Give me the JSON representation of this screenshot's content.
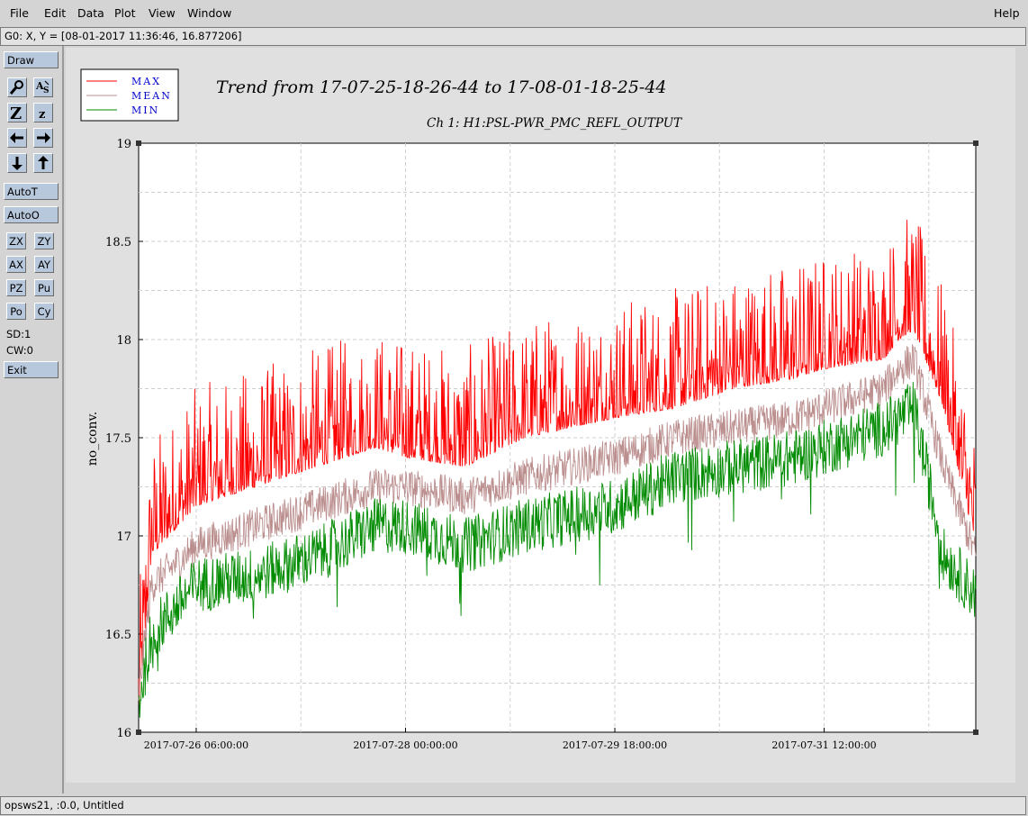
{
  "menu": {
    "file": "File",
    "edit": "Edit",
    "data": "Data",
    "plot": "Plot",
    "view": "View",
    "window": "Window",
    "help": "Help"
  },
  "coord_readout": "G0: X, Y = [08-01-2017 11:36:46, 16.877206]",
  "toolbar": {
    "draw": "Draw",
    "autot": "AutoT",
    "autoo": "AutoO",
    "zx": "ZX",
    "zy": "ZY",
    "ax": "AX",
    "ay": "AY",
    "pz": "PZ",
    "pu": "Pu",
    "po": "Po",
    "cy": "Cy",
    "sd": "SD:1",
    "cw": "CW:0",
    "exit": "Exit"
  },
  "icons": [
    "magnifier-icon",
    "autoscale-text-icon",
    "zoom-in-icon",
    "zoom-out-icon",
    "arrow-left-icon",
    "arrow-right-icon",
    "arrow-down-icon",
    "arrow-up-icon"
  ],
  "status_text": "opsws21, :0.0, Untitled",
  "colors": {
    "max": "#ff0000",
    "mean": "#bc8f8f",
    "min": "#008b00",
    "legend_text": "#0000cc",
    "button": "#b8c8dc"
  },
  "chart_data": {
    "type": "line",
    "title": "Trend from 17-07-25-18-26-44 to 17-08-01-18-25-44",
    "subtitle": "Ch 1: H1:PSL-PWR_PMC_REFL_OUTPUT",
    "xlabel": "",
    "ylabel": "no_conv.",
    "ylim": [
      16,
      19
    ],
    "yticks": [
      "16",
      "16.5",
      "17",
      "17.5",
      "18",
      "18.5",
      "19"
    ],
    "xlim": [
      "2017-07-25 18:26:44",
      "2017-08-01 18:25:44"
    ],
    "xticks": [
      "2017-07-26 06:00:00",
      "2017-07-28 00:00:00",
      "2017-07-29 18:00:00",
      "2017-07-31 12:00:00"
    ],
    "grid": true,
    "legend_position": "top-left",
    "x": [
      "2017-07-25 18:30",
      "2017-07-25 21:00",
      "2017-07-26 06:00",
      "2017-07-26 18:00",
      "2017-07-27 06:00",
      "2017-07-27 18:00",
      "2017-07-28 00:00",
      "2017-07-28 12:00",
      "2017-07-29 00:00",
      "2017-07-29 18:00",
      "2017-07-30 06:00",
      "2017-07-30 18:00",
      "2017-07-31 06:00",
      "2017-07-31 12:00",
      "2017-08-01 00:00",
      "2017-08-01 03:00",
      "2017-08-01 06:00",
      "2017-08-01 12:00",
      "2017-08-01 18:25"
    ],
    "series": [
      {
        "name": "MAX",
        "values": [
          16.2,
          17.0,
          17.25,
          17.35,
          17.45,
          17.55,
          17.5,
          17.45,
          17.6,
          17.7,
          17.75,
          17.85,
          17.9,
          17.95,
          18.0,
          18.1,
          18.15,
          17.75,
          17.05
        ]
      },
      {
        "name": "MEAN",
        "values": [
          16.2,
          16.75,
          16.95,
          17.05,
          17.15,
          17.25,
          17.25,
          17.2,
          17.3,
          17.4,
          17.5,
          17.55,
          17.6,
          17.65,
          17.75,
          17.85,
          17.9,
          17.35,
          16.9
        ]
      },
      {
        "name": "MIN",
        "values": [
          16.15,
          16.5,
          16.75,
          16.8,
          16.9,
          17.05,
          17.05,
          16.95,
          17.05,
          17.15,
          17.3,
          17.35,
          17.4,
          17.45,
          17.55,
          17.6,
          17.65,
          16.9,
          16.7
        ]
      }
    ]
  }
}
